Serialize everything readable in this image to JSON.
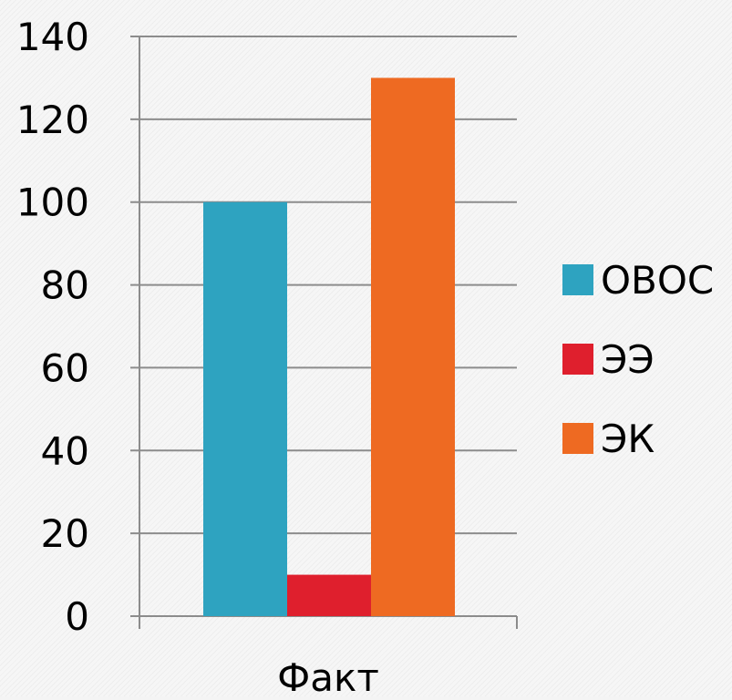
{
  "chart_data": {
    "type": "bar",
    "categories": [
      "Факт"
    ],
    "series": [
      {
        "name": "ОВОС",
        "values": [
          100
        ],
        "color": "#2ea3c0"
      },
      {
        "name": "ЭЭ",
        "values": [
          10
        ],
        "color": "#df1f2d"
      },
      {
        "name": "ЭК",
        "values": [
          130
        ],
        "color": "#ee6a22"
      }
    ],
    "ylim": [
      0,
      140
    ],
    "yticks": [
      0,
      20,
      40,
      60,
      80,
      100,
      120,
      140
    ],
    "grid": true,
    "legend_position": "right"
  }
}
